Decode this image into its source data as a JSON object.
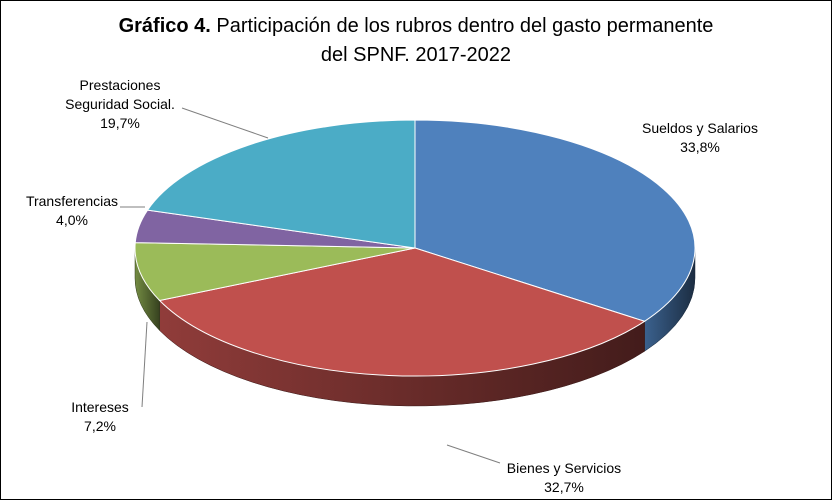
{
  "chart_data": {
    "type": "pie",
    "title_prefix": "Gráfico 4.",
    "title_line1": "Participación de los rubros dentro del gasto permanente",
    "title_line2": "del SPNF. 2017-2022",
    "slices": [
      {
        "label_lines": [
          "Sueldos y Salarios"
        ],
        "value": 33.8,
        "value_label": "33,8%",
        "color": "#4F81BD"
      },
      {
        "label_lines": [
          "Bienes y Servicios"
        ],
        "value": 32.7,
        "value_label": "32,7%",
        "color": "#C0504D"
      },
      {
        "label_lines": [
          "Intereses"
        ],
        "value": 7.2,
        "value_label": "7,2%",
        "color": "#9BBB59"
      },
      {
        "label_lines": [
          "Transferencias"
        ],
        "value": 4.0,
        "value_label": "4,0%",
        "color": "#8064A2"
      },
      {
        "label_lines": [
          "Prestaciones",
          "Seguridad Social."
        ],
        "value": 19.7,
        "value_label": "19,7%",
        "color": "#4BACC6"
      }
    ]
  }
}
